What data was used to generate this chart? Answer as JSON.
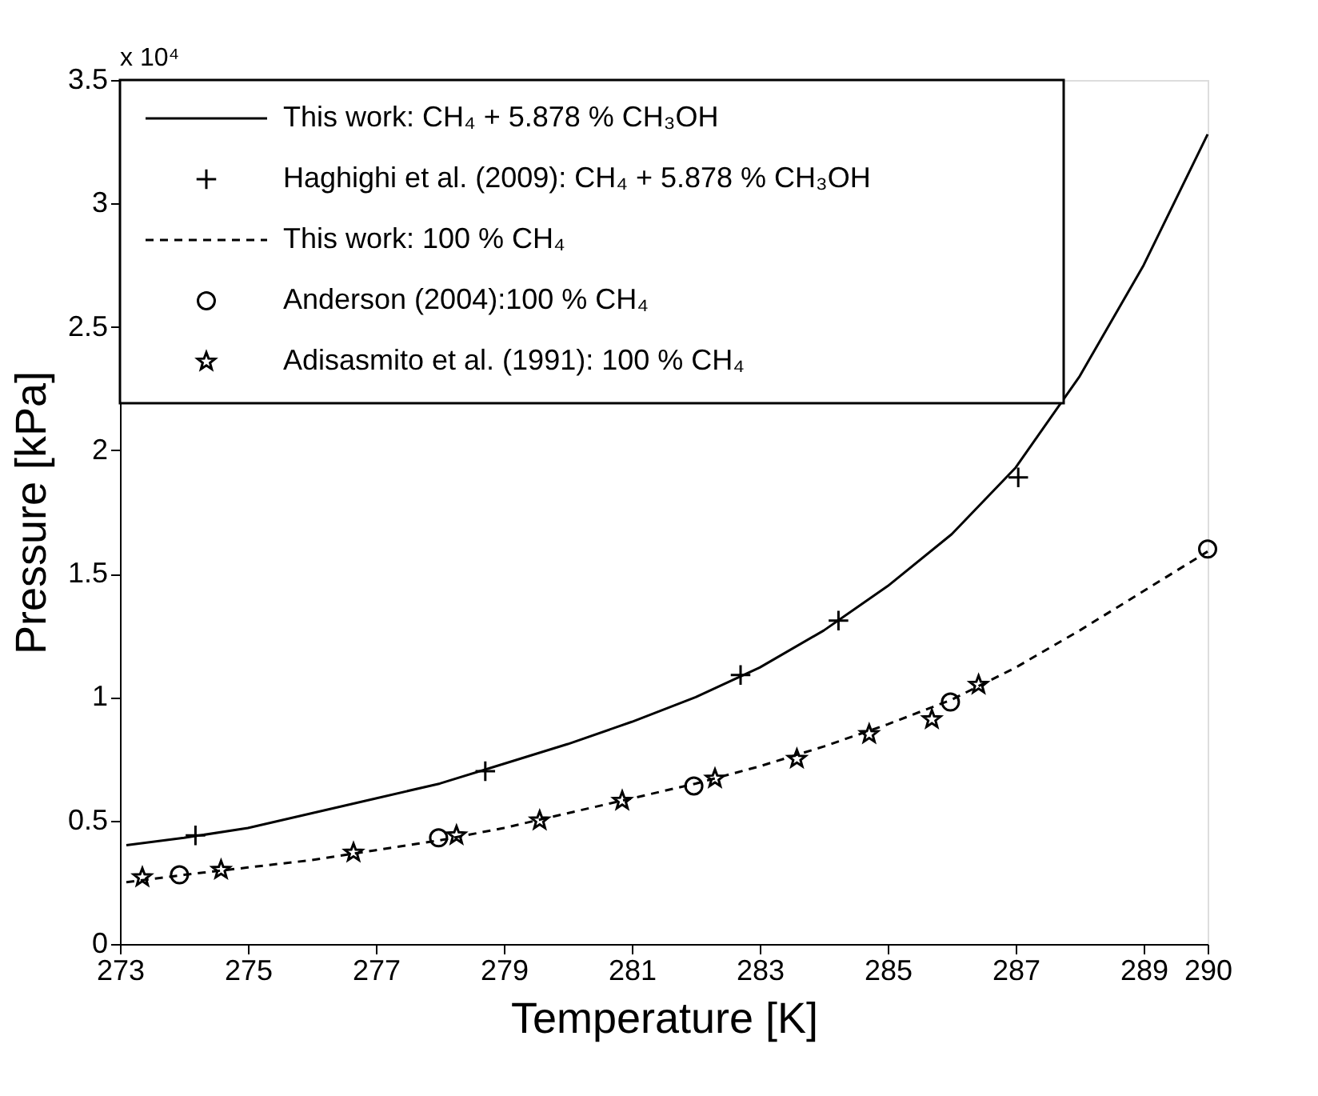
{
  "chart_data": {
    "type": "line",
    "xlabel": "Temperature [K]",
    "ylabel": "Pressure [kPa]",
    "annotations": [
      "x 10⁴"
    ],
    "xlim": [
      273,
      290
    ],
    "xticks": [
      273,
      275,
      277,
      279,
      281,
      283,
      285,
      287,
      289,
      290
    ],
    "ylim": [
      0,
      3.5
    ],
    "yticks": [
      0,
      0.5,
      1,
      1.5,
      2,
      2.5,
      3,
      3.5
    ],
    "grid": false,
    "legend": "top left",
    "series": [
      {
        "name": "This work: CH₄ + 5.878 % CH₃OH",
        "color": "#000000",
        "line_style": "solid",
        "marker": "none",
        "x": [
          273.1,
          274,
          275,
          276,
          277,
          278,
          279,
          280,
          281,
          282,
          283,
          284,
          285,
          286,
          287,
          288,
          289,
          290
        ],
        "values": [
          0.4,
          0.43,
          0.47,
          0.53,
          0.59,
          0.65,
          0.73,
          0.81,
          0.9,
          1.0,
          1.12,
          1.27,
          1.45,
          1.66,
          1.93,
          2.3,
          2.75,
          3.28
        ]
      },
      {
        "name": "Haghighi et al. (2009): CH₄ + 5.878 % CH₃OH",
        "type": "scatter",
        "color": "#000000",
        "marker": "cross",
        "x": [
          274.18,
          278.71,
          282.7,
          284.23,
          287.04
        ],
        "values": [
          0.44,
          0.7,
          1.09,
          1.31,
          1.89
        ]
      },
      {
        "name": "This work: 100 % CH₄",
        "color": "#000000",
        "line_style": "dashed",
        "marker": "none",
        "x": [
          273.1,
          274,
          275,
          276,
          277,
          278,
          279,
          280,
          281,
          282,
          283,
          284,
          285,
          286,
          287,
          288,
          289,
          290
        ],
        "values": [
          0.25,
          0.28,
          0.31,
          0.34,
          0.38,
          0.42,
          0.47,
          0.53,
          0.59,
          0.65,
          0.72,
          0.8,
          0.89,
          0.99,
          1.12,
          1.27,
          1.43,
          1.59
        ]
      },
      {
        "name": "Anderson (2004):100 % CH₄",
        "type": "scatter",
        "color": "#000000",
        "marker": "circle",
        "x": [
          273.93,
          277.98,
          281.97,
          285.98,
          290.0
        ],
        "values": [
          0.28,
          0.43,
          0.64,
          0.98,
          1.6
        ]
      },
      {
        "name": "Adisasmito et al. (1991): 100 % CH₄",
        "type": "scatter",
        "color": "#000000",
        "marker": "star",
        "x": [
          273.35,
          274.58,
          276.65,
          278.26,
          279.56,
          280.85,
          282.3,
          283.58,
          284.71,
          285.69,
          286.42
        ],
        "values": [
          0.27,
          0.3,
          0.37,
          0.44,
          0.5,
          0.58,
          0.67,
          0.75,
          0.85,
          0.91,
          1.05
        ]
      }
    ]
  }
}
